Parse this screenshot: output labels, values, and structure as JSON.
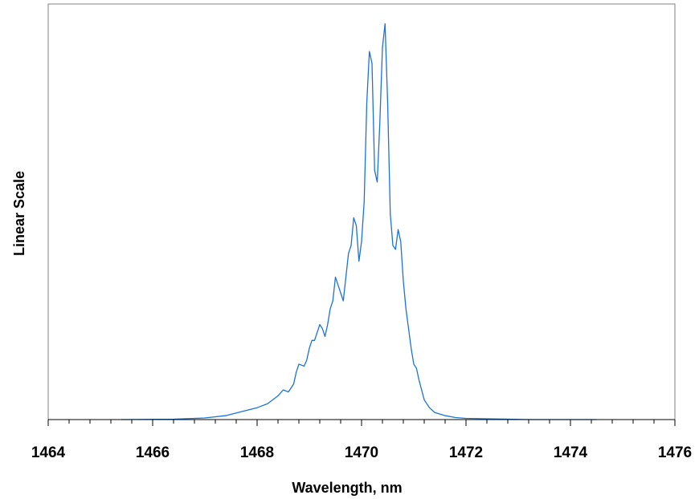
{
  "chart_data": {
    "type": "line",
    "title": "",
    "xlabel": "Wavelength, nm",
    "ylabel": "Linear Scale",
    "xlim": [
      1464,
      1476
    ],
    "ylim": [
      0,
      1.05
    ],
    "x_ticks": [
      1464,
      1466,
      1468,
      1470,
      1472,
      1474,
      1476
    ],
    "x_tick_labels": [
      "1464",
      "1466",
      "1468",
      "1470",
      "1472",
      "1474",
      "1476"
    ],
    "x_minor_tick_step": 0.4,
    "y_tick_labels_shown": false,
    "grid": false,
    "legend": "none",
    "series": [
      {
        "color": "#1a73d9",
        "x": [
          1465.4,
          1466.4,
          1467.0,
          1467.4,
          1467.7,
          1468.0,
          1468.2,
          1468.4,
          1468.5,
          1468.6,
          1468.7,
          1468.75,
          1468.8,
          1468.9,
          1468.95,
          1469.0,
          1469.05,
          1469.1,
          1469.15,
          1469.2,
          1469.25,
          1469.3,
          1469.35,
          1469.4,
          1469.45,
          1469.5,
          1469.55,
          1469.6,
          1469.65,
          1469.7,
          1469.75,
          1469.8,
          1469.85,
          1469.9,
          1469.95,
          1470.0,
          1470.05,
          1470.1,
          1470.15,
          1470.2,
          1470.25,
          1470.3,
          1470.35,
          1470.4,
          1470.45,
          1470.5,
          1470.55,
          1470.6,
          1470.65,
          1470.7,
          1470.75,
          1470.8,
          1470.85,
          1470.9,
          1470.95,
          1471.0,
          1471.05,
          1471.1,
          1471.2,
          1471.3,
          1471.4,
          1471.6,
          1471.8,
          1472.0,
          1472.4,
          1473.2,
          1474.5
        ],
        "y": [
          0.0,
          0.001,
          0.004,
          0.01,
          0.02,
          0.03,
          0.04,
          0.06,
          0.075,
          0.07,
          0.09,
          0.12,
          0.14,
          0.135,
          0.15,
          0.18,
          0.2,
          0.2,
          0.22,
          0.24,
          0.23,
          0.21,
          0.24,
          0.28,
          0.3,
          0.36,
          0.34,
          0.32,
          0.3,
          0.36,
          0.42,
          0.44,
          0.51,
          0.49,
          0.4,
          0.45,
          0.55,
          0.8,
          0.93,
          0.9,
          0.63,
          0.6,
          0.75,
          0.94,
          1.0,
          0.8,
          0.52,
          0.44,
          0.43,
          0.48,
          0.45,
          0.35,
          0.28,
          0.23,
          0.18,
          0.14,
          0.13,
          0.1,
          0.05,
          0.03,
          0.018,
          0.01,
          0.005,
          0.003,
          0.002,
          0.0,
          0.0
        ]
      }
    ]
  }
}
